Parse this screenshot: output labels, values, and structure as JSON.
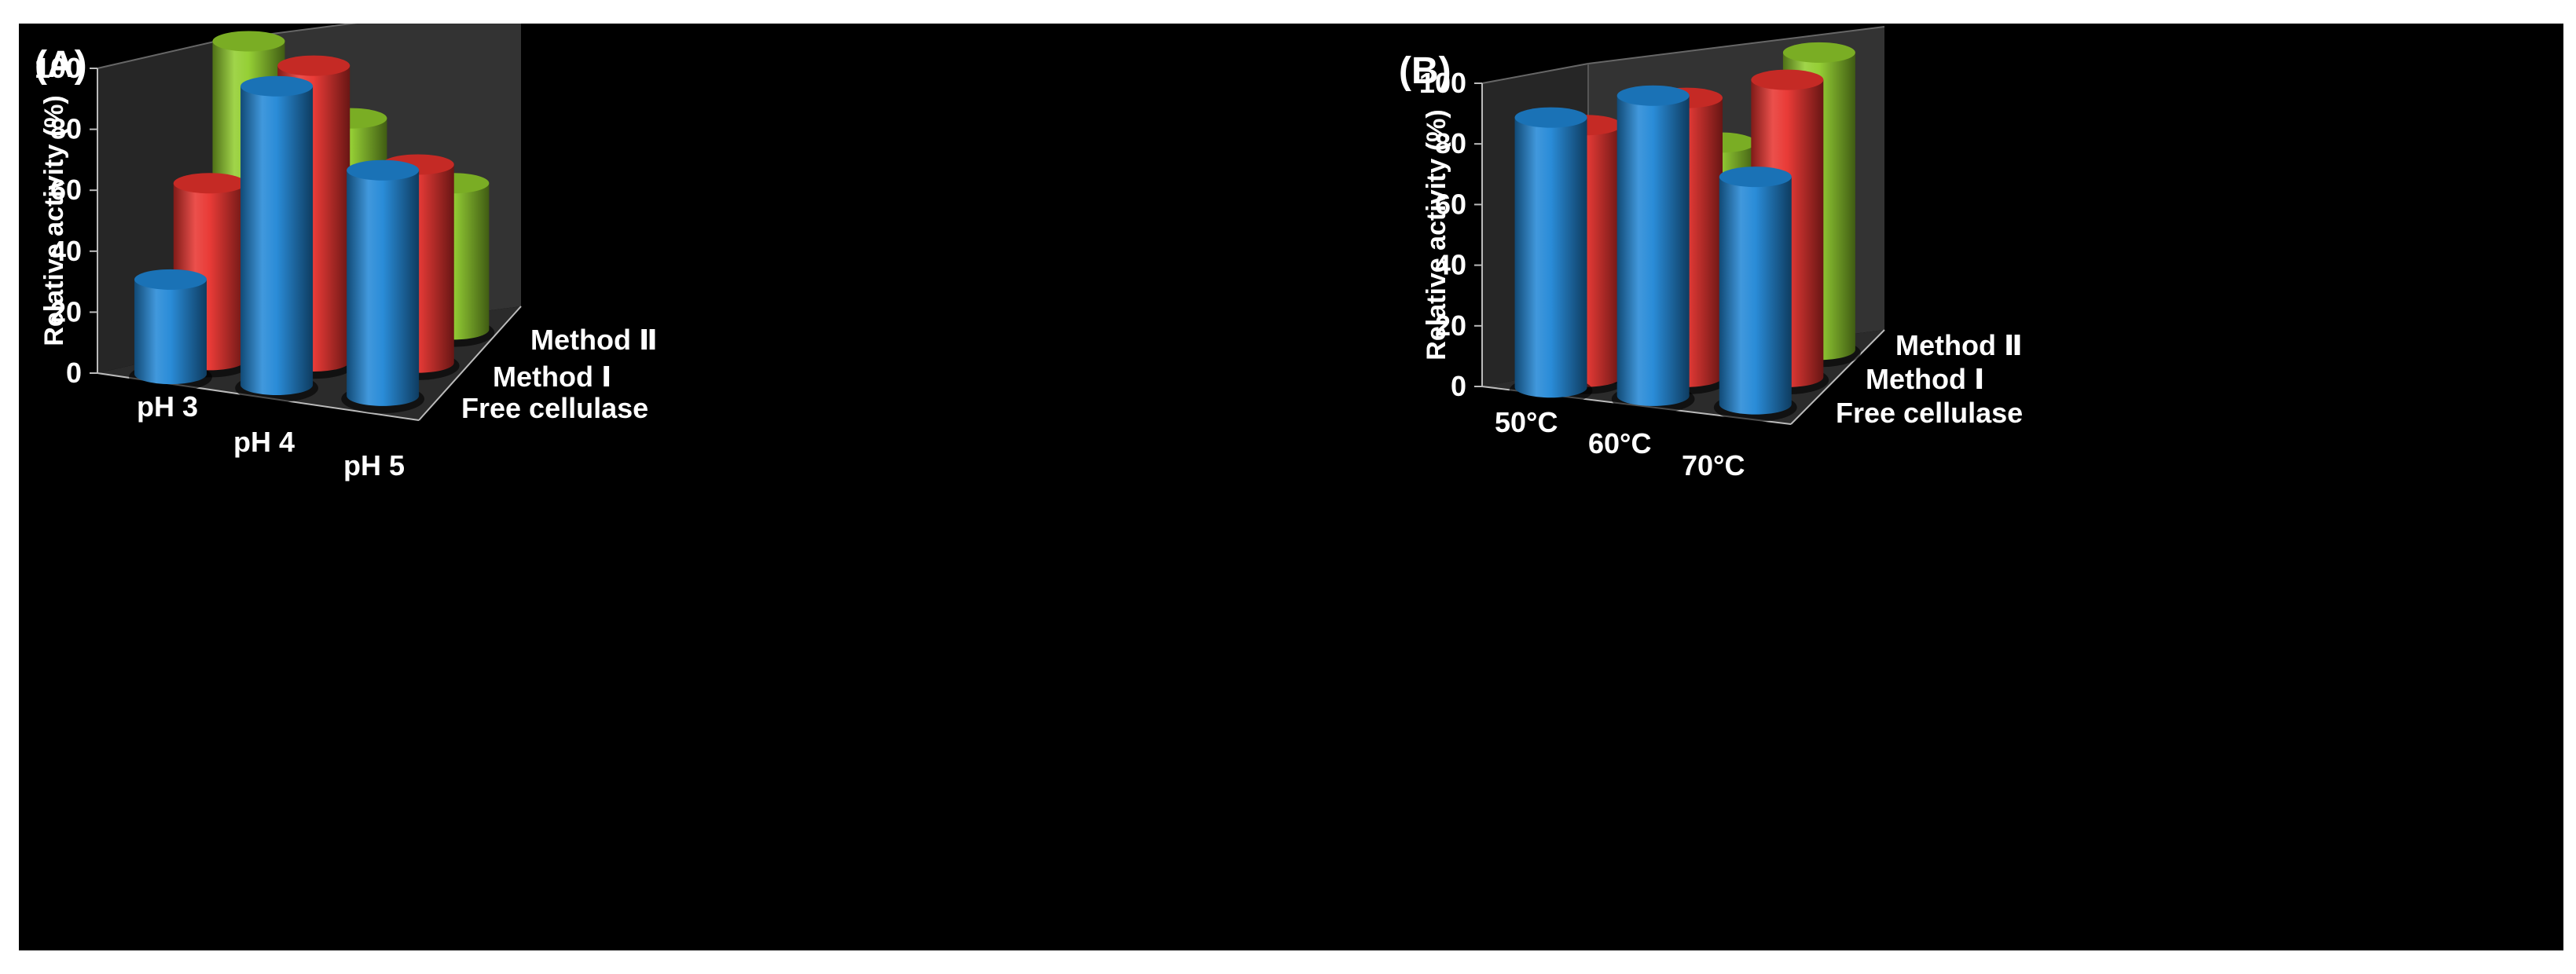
{
  "chart_data": [
    {
      "type": "bar",
      "panel_label": "(A)",
      "title": "",
      "categories": [
        "pH 3",
        "pH 4",
        "pH 5"
      ],
      "series": [
        {
          "name": "Free cellulase",
          "color": "#1f86d6",
          "values": [
            31,
            98,
            74
          ]
        },
        {
          "name": "Method Ⅰ",
          "color": "#e8312c",
          "values": [
            58,
            97,
            65
          ]
        },
        {
          "name": "Method Ⅱ",
          "color": "#8fcc2a",
          "values": [
            100,
            72,
            48
          ]
        }
      ],
      "ylabel": "Relative activity (%)",
      "ylim": [
        0,
        100
      ],
      "yticks": [
        "0",
        "20",
        "40",
        "60",
        "80",
        "100"
      ],
      "grid": false
    },
    {
      "type": "bar",
      "panel_label": "(B)",
      "title": "",
      "categories": [
        "50°C",
        "60°C",
        "70°C"
      ],
      "series": [
        {
          "name": "Free cellulase",
          "color": "#1f86d6",
          "values": [
            89,
            99,
            75
          ]
        },
        {
          "name": "Method Ⅰ",
          "color": "#e8312c",
          "values": [
            83,
            92,
            98
          ]
        },
        {
          "name": "Method Ⅱ",
          "color": "#8fcc2a",
          "values": [
            59,
            71,
            98
          ]
        }
      ],
      "ylabel": "Relative activity (%)",
      "ylim": [
        0,
        100
      ],
      "yticks": [
        "0",
        "20",
        "40",
        "60",
        "80",
        "100"
      ],
      "grid": false
    }
  ]
}
